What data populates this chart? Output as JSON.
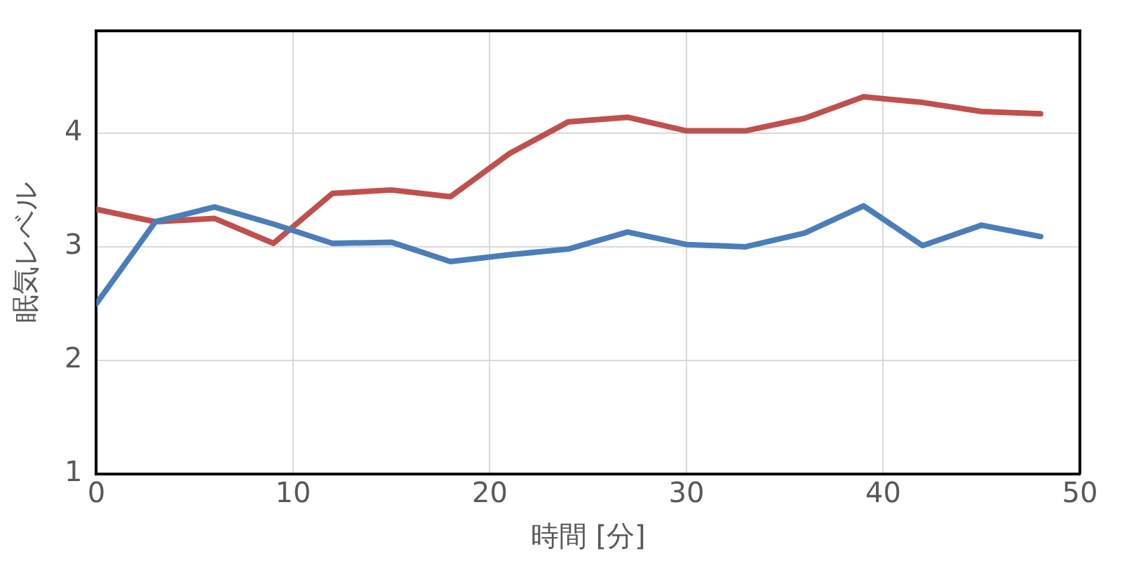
{
  "chart_data": {
    "type": "line",
    "xlabel": "時間 [分]",
    "ylabel": "眠気レベル",
    "x": [
      0,
      3,
      6,
      9,
      12,
      15,
      18,
      21,
      24,
      27,
      30,
      33,
      36,
      39,
      42,
      45,
      48
    ],
    "series": [
      {
        "color": "#4a7ebb",
        "values": [
          2.5,
          3.22,
          3.35,
          3.2,
          3.03,
          3.04,
          2.87,
          2.93,
          2.98,
          3.13,
          3.02,
          3.0,
          3.12,
          3.36,
          3.01,
          3.19,
          3.09
        ]
      },
      {
        "color": "#c0504d",
        "values": [
          3.33,
          3.22,
          3.25,
          3.03,
          3.47,
          3.5,
          3.44,
          3.82,
          4.1,
          4.14,
          4.02,
          4.02,
          4.13,
          4.32,
          4.27,
          4.19,
          4.17
        ]
      }
    ],
    "xlim": [
      0,
      50
    ],
    "xticks": [
      0,
      10,
      20,
      30,
      40,
      50
    ],
    "ylim": [
      1,
      4.9
    ],
    "yticks": [
      1,
      2,
      3,
      4
    ],
    "grid": true,
    "legend": false,
    "marker": "none",
    "line_style": "solid"
  }
}
